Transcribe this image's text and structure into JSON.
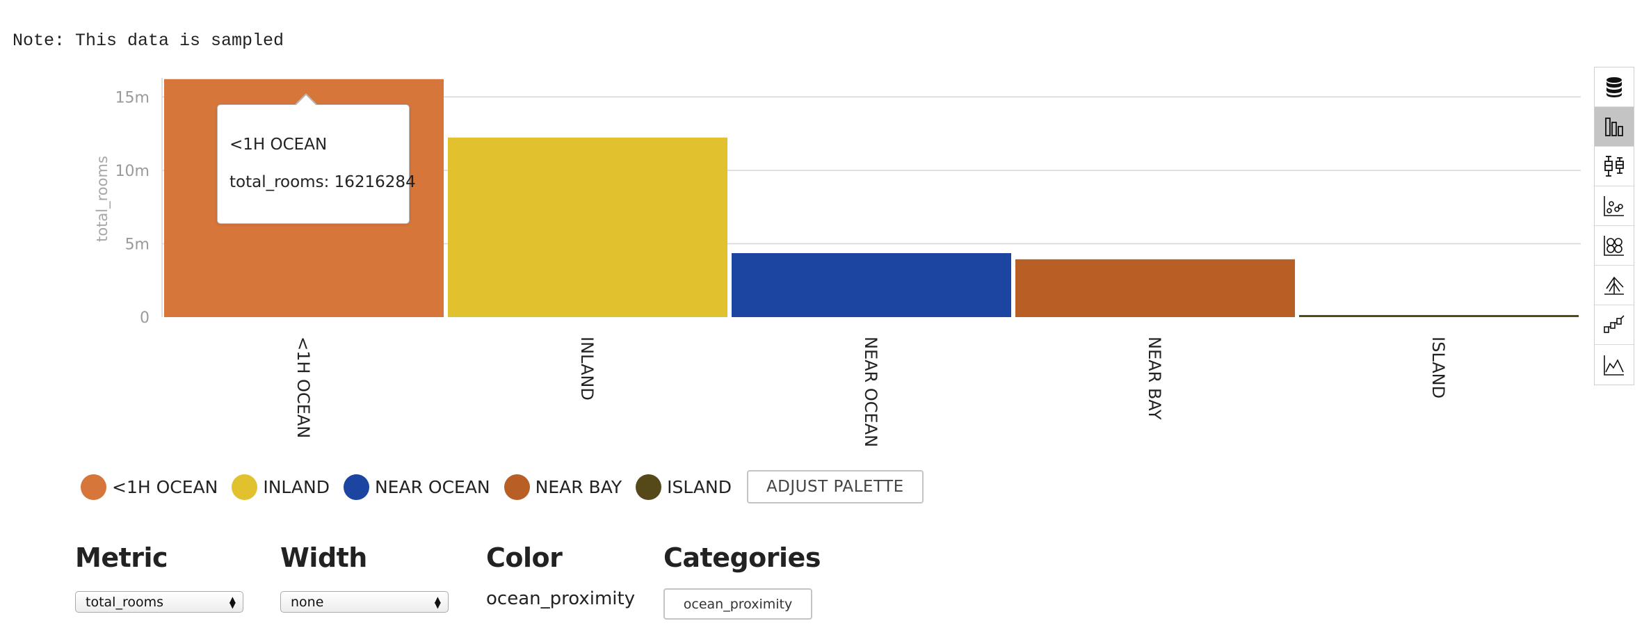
{
  "note": "Note: This data is sampled",
  "chart_data": {
    "type": "bar",
    "categories": [
      "<1H OCEAN",
      "INLAND",
      "NEAR OCEAN",
      "NEAR BAY",
      "ISLAND"
    ],
    "values": [
      16216284,
      12236296,
      4359440,
      3939815,
      9700
    ],
    "colors": [
      "#d7763a",
      "#e2c12e",
      "#1b45a0",
      "#b75f24",
      "#55491a"
    ],
    "ylabel": "total_rooms",
    "ylim": [
      0,
      16300000
    ],
    "yticks": [
      0,
      5000000,
      10000000,
      15000000
    ],
    "ytick_labels": [
      "0",
      "5m",
      "10m",
      "15m"
    ],
    "grid": true,
    "tooltip": {
      "category": "<1H OCEAN",
      "text": "total_rooms: 16216284"
    }
  },
  "toolbar": {
    "tools": [
      {
        "icon": "database-icon",
        "active": false
      },
      {
        "icon": "bar-chart-icon",
        "active": true
      },
      {
        "icon": "box-plot-icon",
        "active": false
      },
      {
        "icon": "scatter-icon",
        "active": false
      },
      {
        "icon": "bubble-icon",
        "active": false
      },
      {
        "icon": "tree-icon",
        "active": false
      },
      {
        "icon": "waterfall-icon",
        "active": false
      },
      {
        "icon": "area-chart-icon",
        "active": false
      }
    ]
  },
  "legend": {
    "items": [
      {
        "label": "<1H OCEAN",
        "color": "#d7763a"
      },
      {
        "label": "INLAND",
        "color": "#e2c12e"
      },
      {
        "label": "NEAR OCEAN",
        "color": "#1b45a0"
      },
      {
        "label": "NEAR BAY",
        "color": "#b75f24"
      },
      {
        "label": "ISLAND",
        "color": "#55491a"
      }
    ],
    "palette_button": "ADJUST PALETTE"
  },
  "controls": {
    "metric": {
      "title": "Metric",
      "value": "total_rooms"
    },
    "width": {
      "title": "Width",
      "value": "none"
    },
    "color": {
      "title": "Color",
      "value": "ocean_proximity"
    },
    "categories": {
      "title": "Categories",
      "value": "ocean_proximity"
    }
  }
}
